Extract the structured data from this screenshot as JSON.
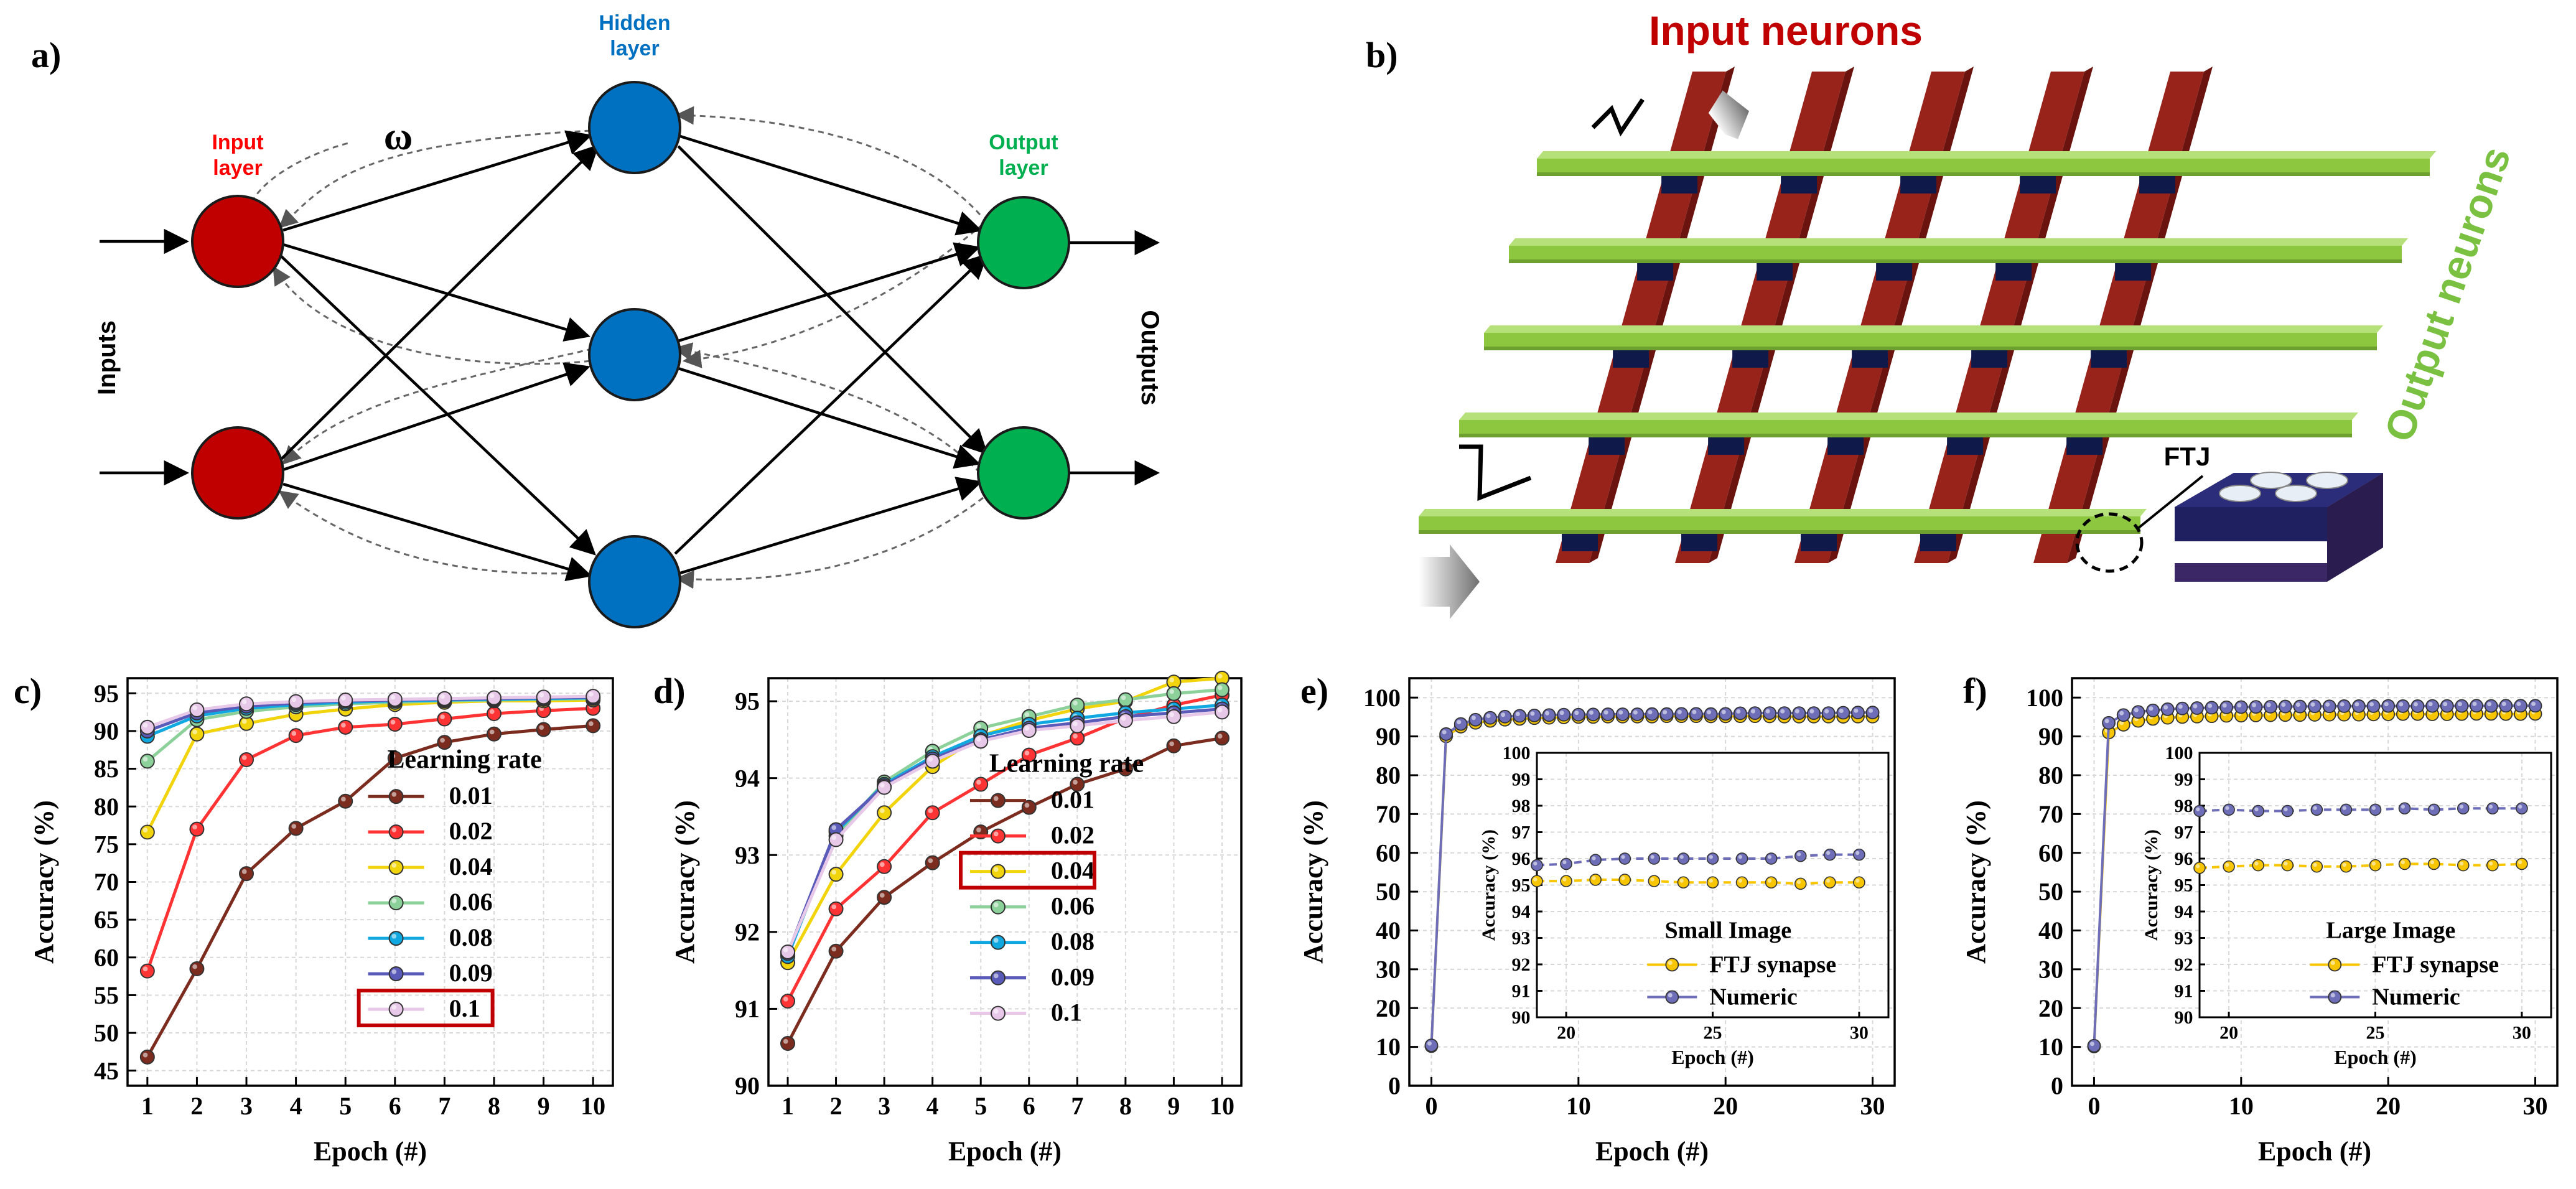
{
  "panel_labels": {
    "a": "a)",
    "b": "b)",
    "c": "c)",
    "d": "d)",
    "e": "e)",
    "f": "f)"
  },
  "colors": {
    "input_node": "#c00000",
    "hidden_node": "#0070c0",
    "output_node": "#00b050",
    "input_text": "#ff0000",
    "hidden_text": "#0070c0",
    "output_text": "#00b050",
    "bar_red": "#98231b",
    "bar_green": "#8dc63f",
    "junction": "#101a4a",
    "ftj_yellow": "#f7c600",
    "ftj_purple": "#6e6db8",
    "highlight_box": "#c00000"
  },
  "network": {
    "input_label": "Input\nlayer",
    "hidden_label": "Hidden\nlayer",
    "output_label": "Output\nlayer",
    "weight_symbol": "ω",
    "inputs_label": "Inputs",
    "outputs_label": "Outputs"
  },
  "crossbar": {
    "input_neurons_label": "Input neurons",
    "output_neurons_label": "Output neurons",
    "ftj_label": "FTJ"
  },
  "learning_rates": [
    "0.01",
    "0.02",
    "0.04",
    "0.06",
    "0.08",
    "0.09",
    "0.1"
  ],
  "series_colors": [
    "#7b2c1e",
    "#ff3333",
    "#f2d40c",
    "#8cd09a",
    "#10a8e0",
    "#5a5ab8",
    "#e8c8e8"
  ],
  "chart_data": [
    {
      "id": "c",
      "type": "line",
      "xlabel": "Epoch (#)",
      "ylabel": "Accuracy (%)",
      "xlim": [
        0.6,
        10.4
      ],
      "ylim": [
        43,
        97
      ],
      "xticks": [
        1,
        2,
        3,
        4,
        5,
        6,
        7,
        8,
        9,
        10
      ],
      "yticks": [
        45,
        50,
        55,
        60,
        65,
        70,
        75,
        80,
        85,
        90,
        95
      ],
      "legend_title": "Learning rate",
      "highlight": "0.1",
      "x": [
        1,
        2,
        3,
        4,
        5,
        6,
        7,
        8,
        9,
        10
      ],
      "series": [
        {
          "name": "0.01",
          "values": [
            46.8,
            58.5,
            71.1,
            77.1,
            80.7,
            86.4,
            88.5,
            89.6,
            90.2,
            90.7
          ]
        },
        {
          "name": "0.02",
          "values": [
            58.2,
            77.0,
            86.2,
            89.4,
            90.5,
            90.9,
            91.6,
            92.3,
            92.7,
            93.0
          ]
        },
        {
          "name": "0.04",
          "values": [
            76.6,
            89.6,
            91.0,
            92.2,
            92.9,
            93.5,
            93.8,
            94.0,
            94.0,
            94.1
          ]
        },
        {
          "name": "0.06",
          "values": [
            86.0,
            91.5,
            92.6,
            93.2,
            93.6,
            93.8,
            94.0,
            94.1,
            94.2,
            94.3
          ]
        },
        {
          "name": "0.08",
          "values": [
            89.3,
            92.0,
            93.0,
            93.5,
            93.8,
            94.0,
            94.1,
            94.2,
            94.3,
            94.4
          ]
        },
        {
          "name": "0.09",
          "values": [
            90.0,
            92.4,
            93.3,
            93.7,
            94.0,
            94.1,
            94.2,
            94.3,
            94.4,
            94.5
          ]
        },
        {
          "name": "0.1",
          "values": [
            90.5,
            92.8,
            93.6,
            93.9,
            94.1,
            94.2,
            94.3,
            94.4,
            94.5,
            94.6
          ]
        }
      ]
    },
    {
      "id": "d",
      "type": "line",
      "xlabel": "Epoch (#)",
      "ylabel": "Accuracy (%)",
      "xlim": [
        0.6,
        10.4
      ],
      "ylim": [
        90,
        95.3
      ],
      "xticks": [
        1,
        2,
        3,
        4,
        5,
        6,
        7,
        8,
        9,
        10
      ],
      "yticks": [
        90,
        91,
        92,
        93,
        94,
        95
      ],
      "legend_title": "Learning rate",
      "highlight": "0.04",
      "x": [
        1,
        2,
        3,
        4,
        5,
        6,
        7,
        8,
        9,
        10
      ],
      "series": [
        {
          "name": "0.01",
          "values": [
            90.55,
            91.75,
            92.45,
            92.9,
            93.3,
            93.62,
            93.92,
            94.12,
            94.42,
            94.52
          ]
        },
        {
          "name": "0.02",
          "values": [
            91.1,
            92.3,
            92.85,
            93.55,
            93.92,
            94.3,
            94.52,
            94.78,
            94.95,
            95.08
          ]
        },
        {
          "name": "0.04",
          "values": [
            91.6,
            92.75,
            93.55,
            94.15,
            94.55,
            94.75,
            94.9,
            95.0,
            95.25,
            95.3
          ]
        },
        {
          "name": "0.06",
          "values": [
            91.7,
            93.25,
            93.95,
            94.35,
            94.65,
            94.8,
            94.95,
            95.02,
            95.1,
            95.15
          ]
        },
        {
          "name": "0.08",
          "values": [
            91.68,
            93.3,
            93.92,
            94.28,
            94.55,
            94.7,
            94.78,
            94.85,
            94.9,
            94.95
          ]
        },
        {
          "name": "0.09",
          "values": [
            91.72,
            93.33,
            93.9,
            94.25,
            94.5,
            94.65,
            94.72,
            94.8,
            94.85,
            94.9
          ]
        },
        {
          "name": "0.1",
          "values": [
            91.74,
            93.2,
            93.88,
            94.22,
            94.48,
            94.62,
            94.68,
            94.75,
            94.8,
            94.86
          ]
        }
      ]
    },
    {
      "id": "e",
      "type": "line",
      "xlabel": "Epoch (#)",
      "ylabel": "Accuracy (%)",
      "xlim": [
        -1.5,
        31.5
      ],
      "ylim": [
        0,
        105
      ],
      "xticks": [
        0,
        10,
        20,
        30
      ],
      "yticks": [
        0,
        10,
        20,
        30,
        40,
        50,
        60,
        70,
        80,
        90,
        100
      ],
      "legend_title": "Small Image",
      "series": [
        {
          "name": "FTJ synapse",
          "x": [
            0,
            1,
            2,
            3,
            4,
            5,
            6,
            7,
            8,
            9,
            10,
            11,
            12,
            13,
            14,
            15,
            16,
            17,
            18,
            19,
            20,
            21,
            22,
            23,
            24,
            25,
            26,
            27,
            28,
            29,
            30
          ],
          "values": [
            10.2,
            90.0,
            92.5,
            93.5,
            94.0,
            94.3,
            94.5,
            94.7,
            94.8,
            94.9,
            95.0,
            95.0,
            95.1,
            95.1,
            95.1,
            95.1,
            95.2,
            95.2,
            95.2,
            95.15,
            95.15,
            95.2,
            95.2,
            95.15,
            95.1,
            95.1,
            95.1,
            95.1,
            95.05,
            95.1,
            95.1
          ]
        },
        {
          "name": "Numeric",
          "x": [
            0,
            1,
            2,
            3,
            4,
            5,
            6,
            7,
            8,
            9,
            10,
            11,
            12,
            13,
            14,
            15,
            16,
            17,
            18,
            19,
            20,
            21,
            22,
            23,
            24,
            25,
            26,
            27,
            28,
            29,
            30
          ],
          "values": [
            10.4,
            90.6,
            93.2,
            94.3,
            94.8,
            95.1,
            95.3,
            95.4,
            95.5,
            95.6,
            95.6,
            95.65,
            95.7,
            95.7,
            95.7,
            95.75,
            95.75,
            95.8,
            95.8,
            95.75,
            95.8,
            95.95,
            96.0,
            96.0,
            96.0,
            96.0,
            96.0,
            96.0,
            96.1,
            96.15,
            96.15
          ]
        }
      ],
      "inset": {
        "xlabel": "Epoch (#)",
        "ylabel": "Accuracy (%)",
        "xlim": [
          19,
          31
        ],
        "ylim": [
          90,
          100
        ],
        "xticks": [
          20,
          25,
          30
        ],
        "yticks": [
          90,
          91,
          92,
          93,
          94,
          95,
          96,
          97,
          98,
          99,
          100
        ],
        "series": [
          {
            "name": "FTJ synapse",
            "x": [
              19,
              20,
              21,
              22,
              23,
              24,
              25,
              26,
              27,
              28,
              29,
              30
            ],
            "values": [
              95.15,
              95.15,
              95.2,
              95.2,
              95.15,
              95.1,
              95.1,
              95.1,
              95.1,
              95.05,
              95.1,
              95.1
            ]
          },
          {
            "name": "Numeric",
            "x": [
              19,
              20,
              21,
              22,
              23,
              24,
              25,
              26,
              27,
              28,
              29,
              30
            ],
            "values": [
              95.75,
              95.8,
              95.95,
              96.0,
              96.0,
              96.0,
              96.0,
              96.0,
              96.0,
              96.1,
              96.15,
              96.15
            ]
          }
        ]
      }
    },
    {
      "id": "f",
      "type": "line",
      "xlabel": "Epoch (#)",
      "ylabel": "Accuracy (%)",
      "xlim": [
        -1.5,
        31.5
      ],
      "ylim": [
        0,
        105
      ],
      "xticks": [
        0,
        10,
        20,
        30
      ],
      "yticks": [
        0,
        10,
        20,
        30,
        40,
        50,
        60,
        70,
        80,
        90,
        100
      ],
      "legend_title": "Large Image",
      "series": [
        {
          "name": "FTJ synapse",
          "x": [
            0,
            1,
            2,
            3,
            4,
            5,
            6,
            7,
            8,
            9,
            10,
            11,
            12,
            13,
            14,
            15,
            16,
            17,
            18,
            19,
            20,
            21,
            22,
            23,
            24,
            25,
            26,
            27,
            28,
            29,
            30
          ],
          "values": [
            10.1,
            91.0,
            93.0,
            94.0,
            94.5,
            94.8,
            95.0,
            95.1,
            95.2,
            95.3,
            95.35,
            95.4,
            95.45,
            95.5,
            95.5,
            95.55,
            95.6,
            95.6,
            95.6,
            95.65,
            95.7,
            95.75,
            95.75,
            95.7,
            95.7,
            95.75,
            95.8,
            95.8,
            95.75,
            95.75,
            95.8
          ]
        },
        {
          "name": "Numeric",
          "x": [
            0,
            1,
            2,
            3,
            4,
            5,
            6,
            7,
            8,
            9,
            10,
            11,
            12,
            13,
            14,
            15,
            16,
            17,
            18,
            19,
            20,
            21,
            22,
            23,
            24,
            25,
            26,
            27,
            28,
            29,
            30
          ],
          "values": [
            10.3,
            93.5,
            95.5,
            96.3,
            96.7,
            97.0,
            97.2,
            97.3,
            97.4,
            97.5,
            97.55,
            97.6,
            97.65,
            97.7,
            97.7,
            97.75,
            97.75,
            97.8,
            97.8,
            97.8,
            97.85,
            97.8,
            97.8,
            97.85,
            97.85,
            97.85,
            97.9,
            97.85,
            97.9,
            97.9,
            97.9
          ]
        }
      ],
      "inset": {
        "xlabel": "Epoch (#)",
        "ylabel": "Accuracy (%)",
        "xlim": [
          19,
          31
        ],
        "ylim": [
          90,
          100
        ],
        "xticks": [
          20,
          25,
          30
        ],
        "yticks": [
          90,
          91,
          92,
          93,
          94,
          95,
          96,
          97,
          98,
          99,
          100
        ],
        "series": [
          {
            "name": "FTJ synapse",
            "x": [
              19,
              20,
              21,
              22,
              23,
              24,
              25,
              26,
              27,
              28,
              29,
              30
            ],
            "values": [
              95.65,
              95.7,
              95.75,
              95.75,
              95.7,
              95.7,
              95.75,
              95.8,
              95.8,
              95.75,
              95.75,
              95.8
            ]
          },
          {
            "name": "Numeric",
            "x": [
              19,
              20,
              21,
              22,
              23,
              24,
              25,
              26,
              27,
              28,
              29,
              30
            ],
            "values": [
              97.8,
              97.85,
              97.8,
              97.8,
              97.85,
              97.85,
              97.85,
              97.9,
              97.85,
              97.9,
              97.9,
              97.9
            ]
          }
        ]
      }
    }
  ]
}
